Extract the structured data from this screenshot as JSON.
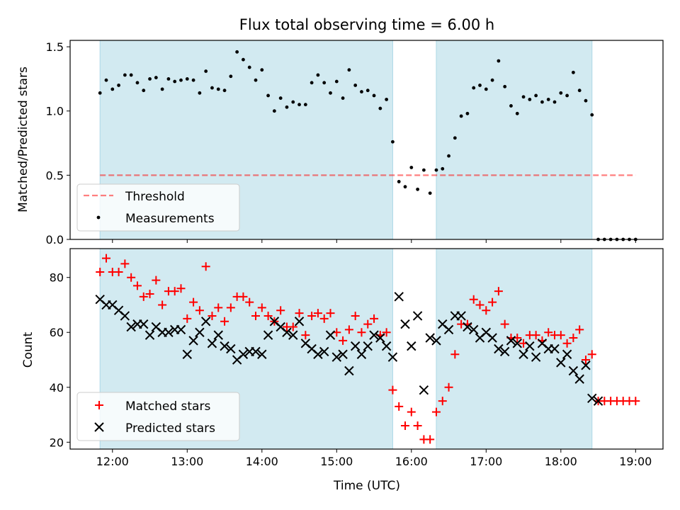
{
  "colors": {
    "shade": "#add8e6",
    "threshold": "#ff0000",
    "measurement": "#000000",
    "matched": "#ff0000",
    "predicted": "#000000"
  },
  "chart_data": [
    {
      "type": "scatter",
      "title": "Flux total observing time = 6.00 h",
      "xlabel": "",
      "ylabel": "Matched/Predicted stars",
      "xlim": [
        "11:26",
        "19:22"
      ],
      "ylim": [
        0,
        1.55
      ],
      "x_ticks": [
        "12:00",
        "13:00",
        "14:00",
        "15:00",
        "16:00",
        "17:00",
        "18:00",
        "19:00"
      ],
      "y_ticks": [
        "0.0",
        "0.5",
        "1.0",
        "1.5"
      ],
      "shaded_intervals": [
        [
          "11:50",
          "15:45"
        ],
        [
          "16:20",
          "18:25"
        ]
      ],
      "threshold": {
        "name": "Threshold",
        "value": 0.5,
        "x_range": [
          "11:50",
          "19:00"
        ],
        "style": "dashed"
      },
      "legend_position": "lower-left",
      "series": [
        {
          "name": "Measurements",
          "x": [
            "11:50",
            "11:55",
            "12:00",
            "12:05",
            "12:10",
            "12:15",
            "12:20",
            "12:25",
            "12:30",
            "12:35",
            "12:40",
            "12:45",
            "12:50",
            "12:55",
            "13:00",
            "13:05",
            "13:10",
            "13:15",
            "13:20",
            "13:25",
            "13:30",
            "13:35",
            "13:40",
            "13:45",
            "13:50",
            "13:55",
            "14:00",
            "14:05",
            "14:10",
            "14:15",
            "14:20",
            "14:25",
            "14:30",
            "14:35",
            "14:40",
            "14:45",
            "14:50",
            "14:55",
            "15:00",
            "15:05",
            "15:10",
            "15:15",
            "15:20",
            "15:25",
            "15:30",
            "15:35",
            "15:40",
            "15:45",
            "15:50",
            "15:55",
            "16:00",
            "16:05",
            "16:10",
            "16:15",
            "16:20",
            "16:25",
            "16:30",
            "16:35",
            "16:40",
            "16:45",
            "16:50",
            "16:55",
            "17:00",
            "17:05",
            "17:10",
            "17:15",
            "17:20",
            "17:25",
            "17:30",
            "17:35",
            "17:40",
            "17:45",
            "17:50",
            "17:55",
            "18:00",
            "18:05",
            "18:10",
            "18:15",
            "18:20",
            "18:25",
            "18:30",
            "18:35",
            "18:40",
            "18:45",
            "18:50",
            "18:55",
            "19:00"
          ],
          "values": [
            1.14,
            1.24,
            1.17,
            1.2,
            1.28,
            1.28,
            1.22,
            1.16,
            1.25,
            1.26,
            1.17,
            1.25,
            1.23,
            1.24,
            1.25,
            1.24,
            1.14,
            1.31,
            1.18,
            1.17,
            1.16,
            1.27,
            1.46,
            1.4,
            1.34,
            1.24,
            1.32,
            1.12,
            1.0,
            1.1,
            1.03,
            1.07,
            1.05,
            1.05,
            1.22,
            1.28,
            1.22,
            1.14,
            1.23,
            1.1,
            1.32,
            1.2,
            1.15,
            1.16,
            1.12,
            1.02,
            1.09,
            0.76,
            0.45,
            0.41,
            0.56,
            0.39,
            0.54,
            0.36,
            0.54,
            0.55,
            0.65,
            0.79,
            0.96,
            0.98,
            1.18,
            1.2,
            1.17,
            1.24,
            1.39,
            1.19,
            1.04,
            0.98,
            1.11,
            1.09,
            1.12,
            1.07,
            1.09,
            1.07,
            1.14,
            1.12,
            1.3,
            1.16,
            1.08,
            0.97,
            0,
            0,
            0,
            0,
            0,
            0,
            0
          ]
        }
      ]
    },
    {
      "type": "scatter",
      "title": "",
      "xlabel": "Time (UTC)",
      "ylabel": "Count",
      "xlim": [
        "11:26",
        "19:22"
      ],
      "ylim": [
        17.5,
        90.5
      ],
      "x_ticks": [
        "12:00",
        "13:00",
        "14:00",
        "15:00",
        "16:00",
        "17:00",
        "18:00",
        "19:00"
      ],
      "y_ticks": [
        "20",
        "40",
        "60",
        "80"
      ],
      "shaded_intervals": [
        [
          "11:50",
          "15:45"
        ],
        [
          "16:20",
          "18:25"
        ]
      ],
      "legend_position": "lower-left",
      "series": [
        {
          "name": "Matched stars",
          "marker": "plus",
          "x": [
            "11:50",
            "11:55",
            "12:00",
            "12:05",
            "12:10",
            "12:15",
            "12:20",
            "12:25",
            "12:30",
            "12:35",
            "12:40",
            "12:45",
            "12:50",
            "12:55",
            "13:00",
            "13:05",
            "13:10",
            "13:15",
            "13:20",
            "13:25",
            "13:30",
            "13:35",
            "13:40",
            "13:45",
            "13:50",
            "13:55",
            "14:00",
            "14:05",
            "14:10",
            "14:15",
            "14:20",
            "14:25",
            "14:30",
            "14:35",
            "14:40",
            "14:45",
            "14:50",
            "14:55",
            "15:00",
            "15:05",
            "15:10",
            "15:15",
            "15:20",
            "15:25",
            "15:30",
            "15:35",
            "15:40",
            "15:45",
            "15:50",
            "15:55",
            "16:00",
            "16:05",
            "16:10",
            "16:15",
            "16:20",
            "16:25",
            "16:30",
            "16:35",
            "16:40",
            "16:45",
            "16:50",
            "16:55",
            "17:00",
            "17:05",
            "17:10",
            "17:15",
            "17:20",
            "17:25",
            "17:30",
            "17:35",
            "17:40",
            "17:45",
            "17:50",
            "17:55",
            "18:00",
            "18:05",
            "18:10",
            "18:15",
            "18:20",
            "18:25",
            "18:30",
            "18:35",
            "18:40",
            "18:45",
            "18:50",
            "18:55",
            "19:00"
          ],
          "values": [
            82,
            87,
            82,
            82,
            85,
            80,
            77,
            73,
            74,
            79,
            70,
            75,
            75,
            76,
            65,
            71,
            68,
            84,
            66,
            69,
            64,
            69,
            73,
            73,
            71,
            66,
            69,
            66,
            64,
            68,
            62,
            62,
            67,
            59,
            66,
            67,
            65,
            67,
            60,
            57,
            61,
            66,
            60,
            63,
            65,
            59,
            60,
            39,
            33,
            26,
            31,
            26,
            21,
            21,
            31,
            35,
            40,
            52,
            63,
            63,
            72,
            70,
            68,
            71,
            75,
            63,
            58,
            58,
            56,
            59,
            59,
            57,
            60,
            59,
            59,
            56,
            58,
            61,
            50,
            52,
            35,
            35,
            35,
            35,
            35,
            35,
            35
          ]
        },
        {
          "name": "Predicted stars",
          "marker": "x",
          "x": [
            "11:50",
            "11:55",
            "12:00",
            "12:05",
            "12:10",
            "12:15",
            "12:20",
            "12:25",
            "12:30",
            "12:35",
            "12:40",
            "12:45",
            "12:50",
            "12:55",
            "13:00",
            "13:05",
            "13:10",
            "13:15",
            "13:20",
            "13:25",
            "13:30",
            "13:35",
            "13:40",
            "13:45",
            "13:50",
            "13:55",
            "14:00",
            "14:05",
            "14:10",
            "14:15",
            "14:20",
            "14:25",
            "14:30",
            "14:35",
            "14:40",
            "14:45",
            "14:50",
            "14:55",
            "15:00",
            "15:05",
            "15:10",
            "15:15",
            "15:20",
            "15:25",
            "15:30",
            "15:35",
            "15:40",
            "15:45",
            "15:50",
            "15:55",
            "16:00",
            "16:05",
            "16:10",
            "16:15",
            "16:20",
            "16:25",
            "16:30",
            "16:35",
            "16:40",
            "16:45",
            "16:50",
            "16:55",
            "17:00",
            "17:05",
            "17:10",
            "17:15",
            "17:20",
            "17:25",
            "17:30",
            "17:35",
            "17:40",
            "17:45",
            "17:50",
            "17:55",
            "18:00",
            "18:05",
            "18:10",
            "18:15",
            "18:20",
            "18:25",
            "18:30"
          ],
          "values": [
            72,
            70,
            70,
            68,
            66,
            62,
            63,
            63,
            59,
            62,
            60,
            60,
            61,
            61,
            52,
            57,
            60,
            64,
            56,
            59,
            55,
            54,
            50,
            52,
            53,
            53,
            52,
            59,
            64,
            62,
            60,
            59,
            64,
            56,
            54,
            52,
            53,
            59,
            51,
            52,
            46,
            55,
            52,
            55,
            59,
            58,
            55,
            51,
            73,
            63,
            55,
            66,
            39,
            58,
            57,
            63,
            61,
            66,
            66,
            62,
            61,
            58,
            60,
            58,
            54,
            53,
            57,
            56,
            52,
            55,
            51,
            56,
            54,
            54,
            49,
            52,
            46,
            43,
            48,
            36,
            35
          ]
        }
      ]
    }
  ]
}
